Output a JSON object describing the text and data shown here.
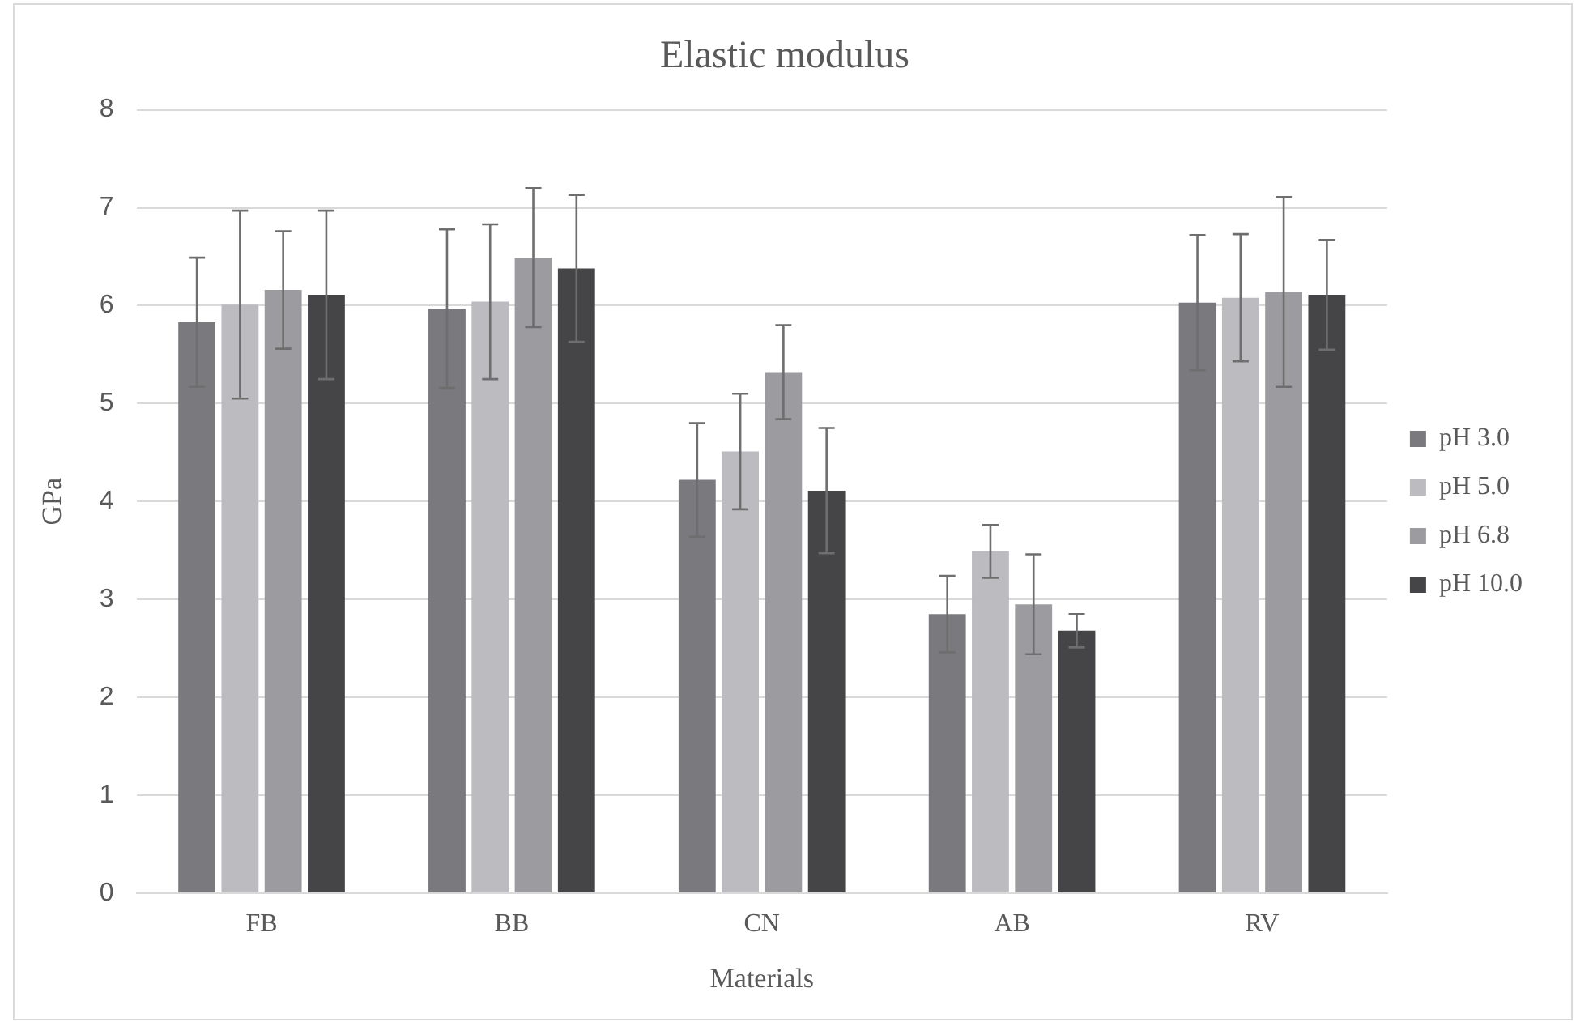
{
  "chart_data": {
    "type": "bar",
    "title": "Elastic modulus",
    "xlabel": "Materials",
    "ylabel": "GPa",
    "categories": [
      "FB",
      "BB",
      "CN",
      "AB",
      "RV"
    ],
    "series": [
      {
        "name": "pH 3.0",
        "color": "#7a7a7e",
        "values": [
          5.83,
          5.97,
          4.22,
          2.85,
          6.03
        ],
        "errors": [
          0.66,
          0.81,
          0.58,
          0.39,
          0.69
        ]
      },
      {
        "name": "pH 5.0",
        "color": "#bcbcc0",
        "values": [
          6.01,
          6.04,
          4.51,
          3.49,
          6.08
        ],
        "errors": [
          0.96,
          0.79,
          0.59,
          0.27,
          0.65
        ]
      },
      {
        "name": "pH 6.8",
        "color": "#9c9ca0",
        "values": [
          6.16,
          6.49,
          5.32,
          2.95,
          6.14
        ],
        "errors": [
          0.6,
          0.71,
          0.48,
          0.51,
          0.97
        ]
      },
      {
        "name": "pH 10.0",
        "color": "#454547",
        "values": [
          6.11,
          6.38,
          4.11,
          2.68,
          6.11
        ],
        "errors": [
          0.86,
          0.75,
          0.64,
          0.17,
          0.56
        ]
      }
    ],
    "ylim": [
      0,
      8
    ],
    "yticks": [
      0,
      1,
      2,
      3,
      4,
      5,
      6,
      7,
      8
    ],
    "grid": "y",
    "legend": "right"
  }
}
